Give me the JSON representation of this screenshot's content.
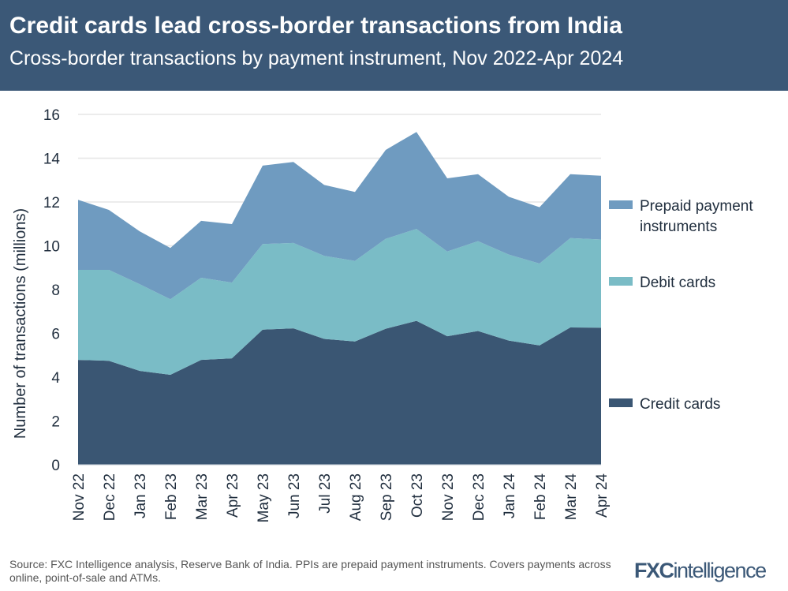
{
  "header": {
    "title": "Credit cards lead cross-border transactions from India",
    "subtitle": "Cross-border transactions by payment instrument, Nov 2022-Apr 2024"
  },
  "footer": {
    "source": "Source: FXC Intelligence analysis, Reserve Bank of India. PPIs are prepaid payment instruments. Covers payments across online, point-of-sale and ATMs.",
    "logo": "FXCintelligence"
  },
  "chart_data": {
    "type": "area",
    "stacked": true,
    "title": "Credit cards lead cross-border transactions from India",
    "subtitle": "Cross-border transactions by payment instrument, Nov 2022-Apr 2024",
    "xlabel": "",
    "ylabel": "Number of transactions (millions)",
    "ylim": [
      0,
      16
    ],
    "yticks": [
      "0",
      "2",
      "4",
      "6",
      "8",
      "10",
      "12",
      "14",
      "16"
    ],
    "grid": true,
    "legend": "right",
    "categories": [
      "Nov 22",
      "Dec 22",
      "Jan 23",
      "Feb 23",
      "Mar 23",
      "Apr 23",
      "May 23",
      "Jun 23",
      "Jul 23",
      "Aug 23",
      "Sep 23",
      "Oct 23",
      "Nov 23",
      "Dec 23",
      "Jan 24",
      "Feb 24",
      "Mar 24",
      "Apr 24"
    ],
    "series": [
      {
        "name": "Credit cards",
        "color": "#3a5673",
        "values": [
          4.79,
          4.75,
          4.29,
          4.11,
          4.79,
          4.86,
          6.17,
          6.23,
          5.75,
          5.63,
          6.21,
          6.57,
          5.87,
          6.11,
          5.67,
          5.45,
          6.27,
          6.26
        ]
      },
      {
        "name": "Debit cards",
        "color": "#7abcc6",
        "values": [
          4.11,
          4.15,
          3.96,
          3.45,
          3.75,
          3.46,
          3.91,
          3.9,
          3.79,
          3.68,
          4.11,
          4.2,
          3.87,
          4.1,
          3.93,
          3.74,
          4.08,
          4.03
        ]
      },
      {
        "name": "Prepaid payment instruments",
        "color": "#6f9bc0",
        "values": [
          3.2,
          2.74,
          2.41,
          2.34,
          2.6,
          2.67,
          3.58,
          3.7,
          3.24,
          3.15,
          4.06,
          4.43,
          3.34,
          3.06,
          2.64,
          2.57,
          2.92,
          2.91
        ]
      }
    ]
  }
}
